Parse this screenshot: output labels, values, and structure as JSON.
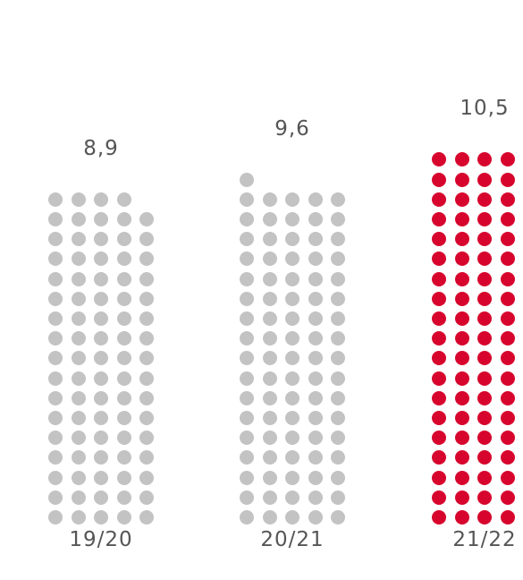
{
  "chart_data": {
    "type": "bar",
    "title": "",
    "xlabel": "",
    "ylabel": "",
    "categories": [
      "19/20",
      "20/21",
      "21/22"
    ],
    "values": [
      8.9,
      9.6,
      10.5
    ],
    "value_labels": [
      "8,9",
      "9,6",
      "10,5"
    ],
    "dots_per_column": [
      84,
      86,
      95
    ],
    "highlight_index": 2,
    "grid": false,
    "legend": "none",
    "colors": {
      "base": "#c3c3c3",
      "highlight": "#d7052d",
      "text": "#555555"
    }
  }
}
